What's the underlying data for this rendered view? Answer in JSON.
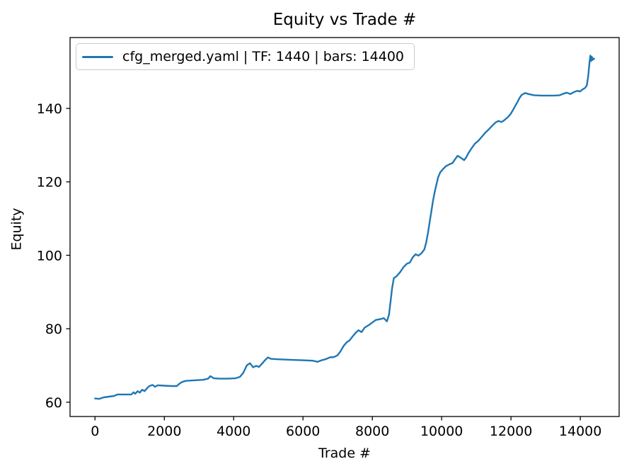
{
  "chart_data": {
    "type": "line",
    "title": "Equity vs Trade #",
    "xlabel": "Trade #",
    "ylabel": "Equity",
    "grid": false,
    "legend_position": "upper left",
    "background": "#ffffff",
    "spine_color": "#000000",
    "x_ticks": [
      0,
      2000,
      4000,
      6000,
      8000,
      10000,
      12000,
      14000
    ],
    "y_ticks": [
      60,
      80,
      100,
      120,
      140
    ],
    "xlim": [
      -720,
      15120
    ],
    "ylim": [
      56.1,
      159.3
    ],
    "series": [
      {
        "name": "cfg_merged.yaml | TF: 1440 | bars: 14400",
        "color": "#1f77b4",
        "points": [
          [
            0,
            61.0
          ],
          [
            120,
            60.9
          ],
          [
            250,
            61.3
          ],
          [
            400,
            61.5
          ],
          [
            550,
            61.7
          ],
          [
            650,
            62.1
          ],
          [
            850,
            62.1
          ],
          [
            1050,
            62.1
          ],
          [
            1110,
            62.7
          ],
          [
            1160,
            62.3
          ],
          [
            1230,
            63.0
          ],
          [
            1290,
            62.6
          ],
          [
            1360,
            63.4
          ],
          [
            1430,
            63.0
          ],
          [
            1510,
            63.9
          ],
          [
            1570,
            64.4
          ],
          [
            1660,
            64.7
          ],
          [
            1730,
            64.2
          ],
          [
            1810,
            64.6
          ],
          [
            2000,
            64.5
          ],
          [
            2200,
            64.4
          ],
          [
            2360,
            64.4
          ],
          [
            2430,
            65.0
          ],
          [
            2510,
            65.5
          ],
          [
            2620,
            65.8
          ],
          [
            2780,
            65.9
          ],
          [
            2950,
            66.0
          ],
          [
            3120,
            66.1
          ],
          [
            3260,
            66.4
          ],
          [
            3330,
            67.1
          ],
          [
            3430,
            66.5
          ],
          [
            3600,
            66.4
          ],
          [
            3820,
            66.4
          ],
          [
            4050,
            66.5
          ],
          [
            4180,
            66.9
          ],
          [
            4280,
            68.0
          ],
          [
            4380,
            70.0
          ],
          [
            4470,
            70.6
          ],
          [
            4560,
            69.5
          ],
          [
            4650,
            69.9
          ],
          [
            4730,
            69.6
          ],
          [
            4820,
            70.5
          ],
          [
            4910,
            71.5
          ],
          [
            4990,
            72.2
          ],
          [
            5070,
            71.8
          ],
          [
            5230,
            71.7
          ],
          [
            5450,
            71.6
          ],
          [
            5750,
            71.5
          ],
          [
            6050,
            71.4
          ],
          [
            6280,
            71.3
          ],
          [
            6420,
            71.0
          ],
          [
            6530,
            71.4
          ],
          [
            6650,
            71.7
          ],
          [
            6780,
            72.2
          ],
          [
            6900,
            72.3
          ],
          [
            7000,
            72.8
          ],
          [
            7080,
            73.8
          ],
          [
            7170,
            75.3
          ],
          [
            7260,
            76.3
          ],
          [
            7340,
            76.8
          ],
          [
            7430,
            77.9
          ],
          [
            7520,
            78.9
          ],
          [
            7600,
            79.6
          ],
          [
            7690,
            79.1
          ],
          [
            7780,
            80.3
          ],
          [
            7900,
            81.0
          ],
          [
            8000,
            81.7
          ],
          [
            8100,
            82.4
          ],
          [
            8230,
            82.6
          ],
          [
            8330,
            82.9
          ],
          [
            8420,
            82.0
          ],
          [
            8480,
            83.8
          ],
          [
            8520,
            87.0
          ],
          [
            8570,
            91.0
          ],
          [
            8620,
            93.8
          ],
          [
            8700,
            94.3
          ],
          [
            8800,
            95.4
          ],
          [
            8900,
            96.8
          ],
          [
            9000,
            97.7
          ],
          [
            9080,
            98.0
          ],
          [
            9170,
            99.5
          ],
          [
            9250,
            100.3
          ],
          [
            9330,
            99.9
          ],
          [
            9420,
            100.6
          ],
          [
            9500,
            101.6
          ],
          [
            9550,
            103.3
          ],
          [
            9600,
            105.8
          ],
          [
            9650,
            108.8
          ],
          [
            9700,
            111.8
          ],
          [
            9750,
            114.8
          ],
          [
            9800,
            117.3
          ],
          [
            9850,
            119.3
          ],
          [
            9900,
            121.3
          ],
          [
            9960,
            122.6
          ],
          [
            10040,
            123.5
          ],
          [
            10130,
            124.3
          ],
          [
            10230,
            124.8
          ],
          [
            10310,
            125.1
          ],
          [
            10390,
            126.2
          ],
          [
            10460,
            127.1
          ],
          [
            10560,
            126.5
          ],
          [
            10650,
            125.9
          ],
          [
            10710,
            126.7
          ],
          [
            10770,
            127.8
          ],
          [
            10860,
            129.1
          ],
          [
            10960,
            130.4
          ],
          [
            11060,
            131.2
          ],
          [
            11160,
            132.3
          ],
          [
            11260,
            133.4
          ],
          [
            11360,
            134.3
          ],
          [
            11460,
            135.3
          ],
          [
            11560,
            136.2
          ],
          [
            11640,
            136.6
          ],
          [
            11730,
            136.3
          ],
          [
            11810,
            136.8
          ],
          [
            11910,
            137.6
          ],
          [
            11990,
            138.5
          ],
          [
            12060,
            139.6
          ],
          [
            12130,
            140.8
          ],
          [
            12190,
            141.8
          ],
          [
            12250,
            142.9
          ],
          [
            12310,
            143.7
          ],
          [
            12410,
            144.2
          ],
          [
            12510,
            143.9
          ],
          [
            12660,
            143.6
          ],
          [
            12860,
            143.5
          ],
          [
            13060,
            143.5
          ],
          [
            13260,
            143.5
          ],
          [
            13410,
            143.6
          ],
          [
            13510,
            144.0
          ],
          [
            13610,
            144.3
          ],
          [
            13710,
            143.9
          ],
          [
            13810,
            144.4
          ],
          [
            13910,
            144.8
          ],
          [
            13990,
            144.6
          ],
          [
            14070,
            145.2
          ],
          [
            14140,
            145.6
          ],
          [
            14190,
            146.3
          ],
          [
            14230,
            149.0
          ],
          [
            14265,
            152.5
          ],
          [
            14290,
            154.4
          ],
          [
            14310,
            152.9
          ],
          [
            14330,
            154.1
          ],
          [
            14355,
            153.2
          ],
          [
            14380,
            153.6
          ],
          [
            14400,
            153.5
          ]
        ]
      }
    ]
  }
}
